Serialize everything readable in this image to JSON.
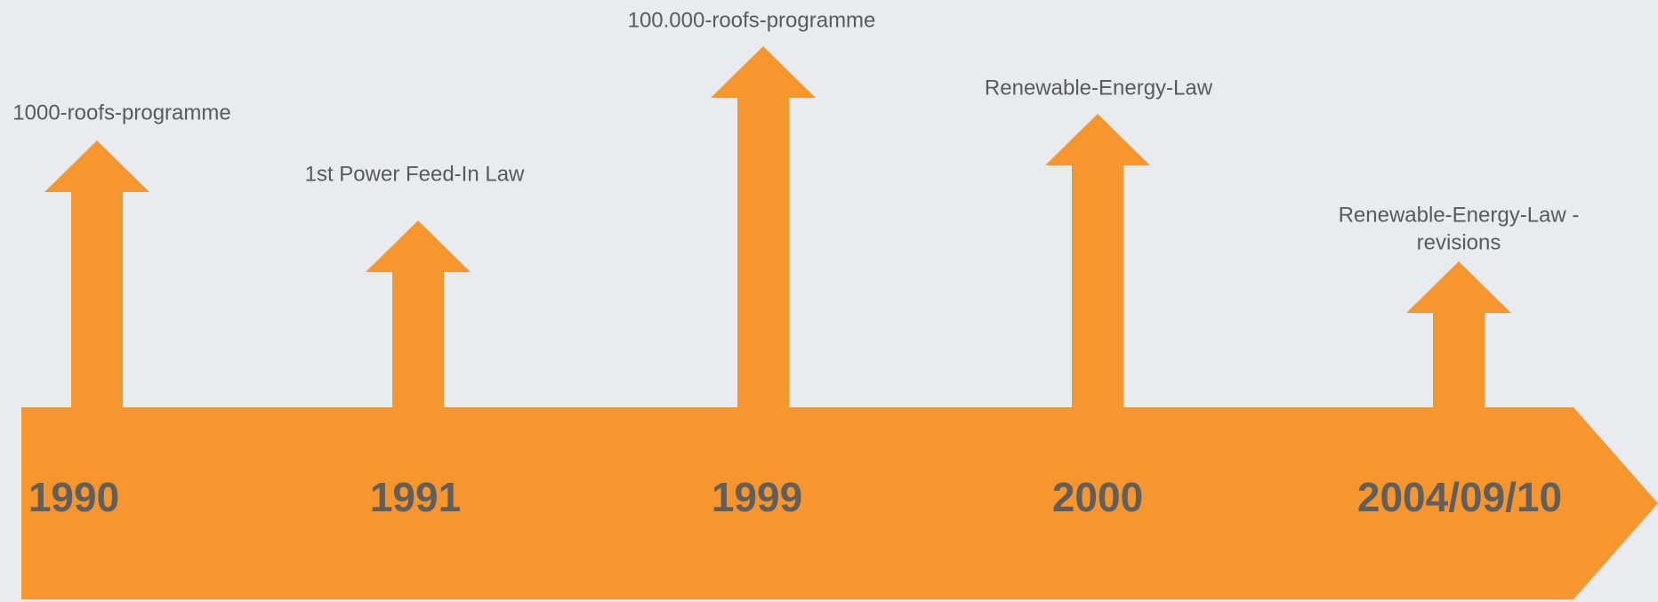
{
  "events": [
    {
      "year": "1990",
      "label": [
        "1000-roofs-programme"
      ]
    },
    {
      "year": "1991",
      "label": [
        "1st Power Feed-In Law"
      ]
    },
    {
      "year": "1999",
      "label": [
        "100.000-roofs-programme"
      ]
    },
    {
      "year": "2000",
      "label": [
        "Renewable-Energy-Law"
      ]
    },
    {
      "year": "2004/09/10",
      "label": [
        "Renewable-Energy-Law -",
        "revisions"
      ]
    }
  ]
}
